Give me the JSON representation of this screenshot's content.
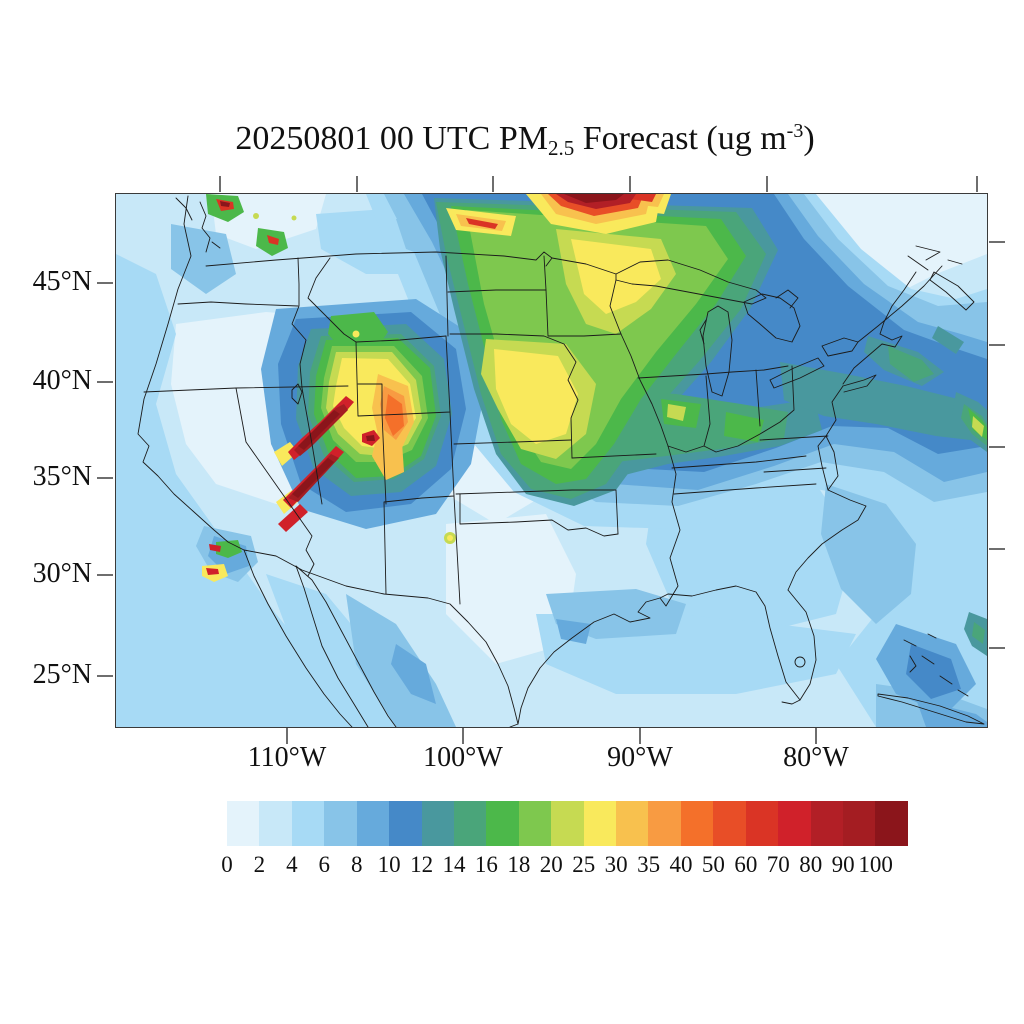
{
  "figure": {
    "title": {
      "prefix": "20250801 00 UTC PM",
      "subscript": "2.5",
      "middle": " Forecast (ug m",
      "superscript": "-3",
      "suffix": ")"
    }
  },
  "axes": {
    "bottom": [
      {
        "text": "110°W",
        "f": 0.1975
      },
      {
        "text": "100°W",
        "f": 0.3995
      },
      {
        "text": "90°W",
        "f": 0.6027
      },
      {
        "text": "80°W",
        "f": 0.8048
      }
    ],
    "left": [
      {
        "text": "45°N",
        "f": 0.1689
      },
      {
        "text": "40°N",
        "f": 0.3546
      },
      {
        "text": "35°N",
        "f": 0.5347
      },
      {
        "text": "30°N",
        "f": 0.7167
      },
      {
        "text": "25°N",
        "f": 0.9062
      }
    ],
    "top_ticks": [
      0.121,
      0.278,
      0.434,
      0.591,
      0.749,
      0.99
    ],
    "right_ticks": [
      0.092,
      0.285,
      0.477,
      0.668,
      0.854
    ]
  },
  "colorbar": {
    "values": [
      "0",
      "2",
      "4",
      "6",
      "8",
      "10",
      "12",
      "14",
      "16",
      "18",
      "20",
      "25",
      "30",
      "35",
      "40",
      "50",
      "60",
      "70",
      "80",
      "90",
      "100"
    ],
    "colors": [
      "#e4f3fb",
      "#c8e8f8",
      "#a7daf5",
      "#88c4e8",
      "#66aadc",
      "#4589c8",
      "#49989e",
      "#4aa57a",
      "#4cb84a",
      "#7ec84e",
      "#c6da52",
      "#f9e95c",
      "#f8c14e",
      "#f89b42",
      "#f4702a",
      "#e84e27",
      "#da3425",
      "#d0212a",
      "#b21f26",
      "#a41d22",
      "#8b151b"
    ]
  },
  "chart_data": {
    "type": "heatmap",
    "subtype": "filled-contour forecast map (CONUS, Lambert-conformal style)",
    "title": "20250801 00 UTC PM2.5 Forecast (ug m-3)",
    "variable": "PM2.5 concentration",
    "units": "ug m-3",
    "valid_time": "20250801 00 UTC",
    "x_tick_labels": [
      "110°W",
      "100°W",
      "90°W",
      "80°W"
    ],
    "y_tick_labels": [
      "45°N",
      "40°N",
      "35°N",
      "30°N",
      "25°N"
    ],
    "colorbar_levels": [
      0,
      2,
      4,
      6,
      8,
      10,
      12,
      14,
      16,
      18,
      20,
      25,
      30,
      35,
      40,
      50,
      60,
      70,
      80,
      90,
      100
    ],
    "colorbar_colors": [
      "#e4f3fb",
      "#c8e8f8",
      "#a7daf5",
      "#88c4e8",
      "#66aadc",
      "#4589c8",
      "#49989e",
      "#4aa57a",
      "#4cb84a",
      "#7ec84e",
      "#c6da52",
      "#f9e95c",
      "#f8c14e",
      "#f89b42",
      "#f4702a",
      "#e84e27",
      "#da3425",
      "#d0212a",
      "#b21f26",
      "#a41d22",
      "#8b151b"
    ],
    "legend_position": "horizontal colorbar below map",
    "grid": "state and national boundaries drawn in thin black",
    "features": [
      {
        "region": "Northern Minnesota / Ontario border (top center of map)",
        "approx_value": ">100",
        "description": "dark-red smoke maximum at map top edge with red-orange-yellow halo and two orange streaks on either side"
      },
      {
        "region": "Upper Midwest plume: Dakotas-Minnesota-Iowa-Missouri-Illinois-Indiana-Ohio",
        "approx_value": "14-30",
        "description": "large green band; yellow cores (25-30) over central Minnesota and Iowa/Missouri; green tail along Ohio Valley"
      },
      {
        "region": "Utah",
        "approx_value": ">100",
        "description": "two long dark-red wildfire smoke streaks oriented SW-NE with yellow/orange fringe"
      },
      {
        "region": "Colorado",
        "approx_value": "30-50",
        "description": "orange blobs east of the Utah streaks"
      },
      {
        "region": "Washington state",
        "approx_value": "70 to >100",
        "description": "two small red hotspots (North Cascades and near Puget Sound) ringed by yellow and green"
      },
      {
        "region": "Great Lakes to New England and offshore Atlantic",
        "approx_value": "8-16",
        "description": "blue-teal band with green coastal patches"
      },
      {
        "region": "Atlantic at right map edge near 40N",
        "approx_value": "16-25",
        "description": "green streak with yellow-green core"
      },
      {
        "region": "California-Mexico border (Salton area)",
        "approx_value": "up to ~70",
        "description": "two tiny green/red hotspots"
      },
      {
        "region": "Texas panhandle",
        "approx_value": "20-25",
        "description": "single tiny yellow-green dot"
      },
      {
        "region": "Great Basin, southern Plains, Texas interior, Northeast corner land",
        "approx_value": "0-4",
        "description": "palest background air"
      },
      {
        "region": "Pacific, Gulf of Mexico, Southeast US, Mexico",
        "approx_value": "2-10",
        "description": "light-to-medium blue background"
      },
      {
        "region": "Bahamas / western Atlantic",
        "approx_value": "8-12",
        "description": "medium blue patch"
      }
    ]
  }
}
